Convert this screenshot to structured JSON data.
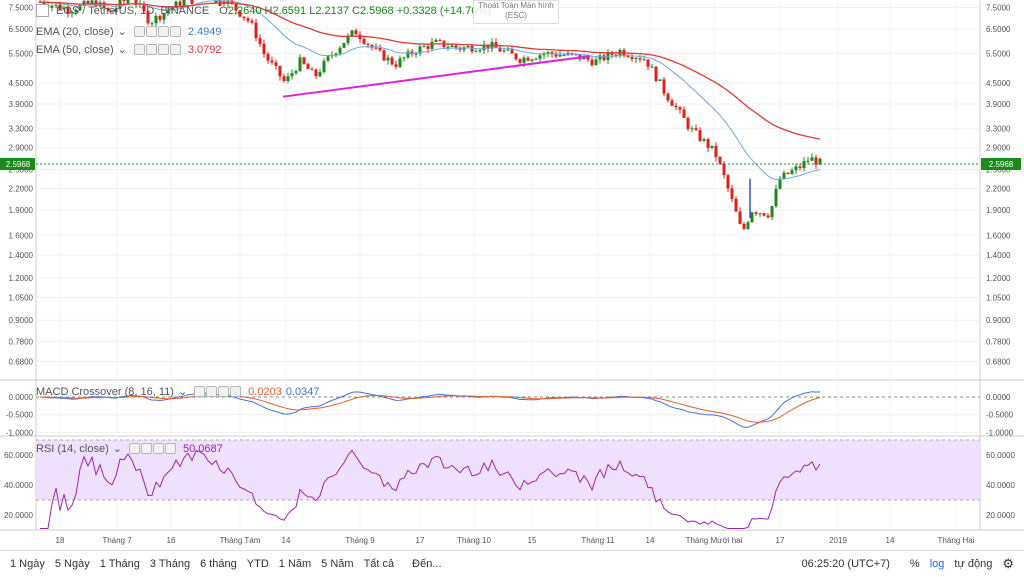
{
  "legend": {
    "symbol": "EOS / TetherUS, 1D, BINANCE",
    "ohlc": {
      "o_label": "O",
      "o": "2.2640",
      "h_label": "H",
      "h": "2.6591",
      "l_label": "L",
      "l": "2.2137",
      "c_label": "C",
      "c": "2.5968",
      "chg": "+0.3328",
      "chg_pct": "(+14.70%)"
    },
    "ema20": {
      "label": "EMA (20, close)",
      "value": "2.4949",
      "color": "#6fa8dc"
    },
    "ema50": {
      "label": "EMA (50, close)",
      "value": "3.0792",
      "color": "#e53935"
    },
    "macd": {
      "label": "MACD Crossover (8, 16, 11)",
      "value1": "0.0203",
      "value2": "0.0347"
    },
    "rsi": {
      "label": "RSI (14, close)",
      "value": "50.0687",
      "color": "#9c27b0"
    }
  },
  "exit_fullscreen": {
    "line1": "Thoát Toàn Màn hình",
    "line2": "(ESC)"
  },
  "bottom_bar": {
    "timeframes": [
      "1 Ngày",
      "5 Ngày",
      "1 Tháng",
      "3 Tháng",
      "6 tháng",
      "YTD",
      "1 Năm",
      "5 Năm",
      "Tất cả",
      "Đến..."
    ],
    "time": "06:25:20 (UTC+7)",
    "pct": "%",
    "log": "log",
    "auto": "tự động",
    "gear": "gear-icon"
  },
  "colors": {
    "up": "#1b8a1b",
    "down": "#e0201b",
    "trend": "#e020e0",
    "grid": "#eef0f3",
    "price_line": "#1b8a1b",
    "macd_line": "#4a6fd8",
    "signal_line": "#e06030"
  },
  "chart_data": {
    "type": "candlestick",
    "main": {
      "scale": "log",
      "y_ticks": [
        "7.5000",
        "6.5000",
        "5.5000",
        "4.5000",
        "3.9000",
        "3.3000",
        "2.9000",
        "2.5000",
        "2.2000",
        "1.9000",
        "1.6000",
        "1.4000",
        "1.2000",
        "1.0500",
        "0.9000",
        "0.7800",
        "0.6800"
      ],
      "last_price": "2.5968",
      "ema20_last": 2.4949,
      "ema50_last": 3.0792
    },
    "macd": {
      "y_ticks": [
        "0.0000",
        "-0.5000",
        "-1.0000"
      ],
      "macd_last": 0.0203,
      "signal_last": 0.0347
    },
    "rsi": {
      "y_ticks": [
        "60.0000",
        "40.0000",
        "20.0000"
      ],
      "rsi_last": 50.0687,
      "band": [
        30,
        70
      ]
    },
    "x_ticks": [
      "18",
      "Tháng 7",
      "16",
      "Tháng Tám",
      "14",
      "Tháng 9",
      "17",
      "Tháng 10",
      "15",
      "Tháng 11",
      "14",
      "Tháng Mười hai",
      "17",
      "2019",
      "14",
      "Tháng Hai"
    ]
  }
}
